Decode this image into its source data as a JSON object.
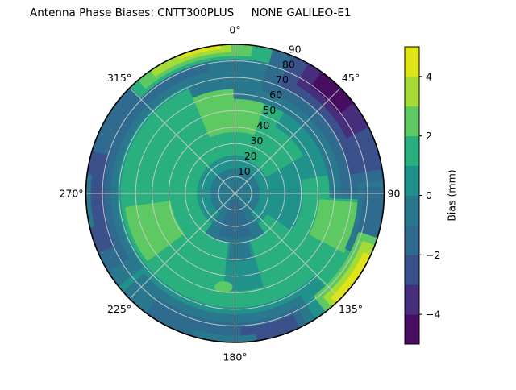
{
  "chart_data": {
    "type": "polar_contour",
    "title": "Antenna Phase Biases: CNTT300PLUS     NONE GALILEO-E1",
    "projection": "polar",
    "angular_tick_labels": [
      "0°",
      "45°",
      "90",
      "135°",
      "180°",
      "225°",
      "270°",
      "315°"
    ],
    "angular_tick_degrees": [
      0,
      45,
      90,
      135,
      180,
      225,
      270,
      315
    ],
    "radial_tick_labels": [
      "10",
      "20",
      "30",
      "40",
      "50",
      "60",
      "70",
      "80",
      "90"
    ],
    "radial_range": [
      0,
      90
    ],
    "grid": {
      "ring_step": 10,
      "spoke_step_deg": 45,
      "color": "#cdcdcd",
      "outline_color": "#000000"
    },
    "colorbar": {
      "label": "Bias (mm)",
      "min": -5,
      "max": 5,
      "n_segments": 10,
      "tick_values": [
        4,
        2,
        0,
        -2,
        -4
      ],
      "tick_labels": [
        "4",
        "2",
        "0",
        "−2",
        "−4"
      ],
      "colors_bottom_to_top": [
        "#470d60",
        "#472e7c",
        "#3b518b",
        "#2f6b8e",
        "#2a788e",
        "#21918c",
        "#2ab07f",
        "#5ec962",
        "#a5db36",
        "#dfe318"
      ]
    },
    "estimated_bias_grid": {
      "units": "mm",
      "azimuth_deg": [
        0,
        45,
        90,
        135,
        180,
        225,
        270,
        315
      ],
      "zenith_deg": [
        0,
        15,
        30,
        45,
        60,
        75,
        90
      ],
      "values_mm": [
        [
          -0.5,
          0.5,
          1.5,
          2.5,
          1.5,
          0.5,
          3.5
        ],
        [
          -0.5,
          0.5,
          1.0,
          0.5,
          -0.5,
          -2.5,
          -4.5
        ],
        [
          -0.5,
          0.5,
          1.0,
          1.5,
          1.5,
          0.5,
          -1.5
        ],
        [
          -0.5,
          0.0,
          1.0,
          1.5,
          1.5,
          2.5,
          4.5
        ],
        [
          -1.5,
          -1.0,
          0.5,
          1.5,
          1.0,
          -0.5,
          -1.5
        ],
        [
          -0.5,
          0.5,
          1.5,
          2.0,
          1.5,
          0.5,
          -1.0
        ],
        [
          -0.5,
          1.0,
          1.5,
          2.0,
          1.5,
          -0.5,
          -2.5
        ],
        [
          -0.5,
          1.0,
          1.5,
          2.0,
          2.5,
          2.5,
          1.5
        ]
      ]
    },
    "base_value": 0.5,
    "contour_regions": [
      {
        "type": "band",
        "az": [
          125,
          390
        ],
        "zen": [
          24,
          68
        ],
        "value": 1.5
      },
      {
        "type": "band",
        "az": [
          25,
          60
        ],
        "zen": [
          22,
          46
        ],
        "value": 1.5
      },
      {
        "type": "band",
        "az": [
          80,
          135
        ],
        "zen": [
          42,
          80
        ],
        "value": 1.5
      },
      {
        "type": "band",
        "az": [
          337,
          377
        ],
        "zen": [
          38,
          62
        ],
        "value": 2.5
      },
      {
        "type": "band",
        "az": [
          233,
          262
        ],
        "zen": [
          40,
          66
        ],
        "value": 2.5
      },
      {
        "type": "band",
        "az": [
          95,
          118
        ],
        "zen": [
          52,
          74
        ],
        "value": 2.5
      },
      {
        "type": "band",
        "az": [
          164,
          186
        ],
        "zen": [
          24,
          58
        ],
        "value": 0.5
      },
      {
        "type": "band",
        "az": [
          167,
          184
        ],
        "zen": [
          26,
          40
        ],
        "value": -0.5
      },
      {
        "type": "ellipse",
        "az": 187,
        "zen": 57,
        "rx": 5.5,
        "ry": 3.5,
        "rot": 0,
        "value": 2.5
      },
      {
        "type": "disk",
        "zen": 15,
        "value": -0.5
      },
      {
        "type": "band",
        "az": [
          145,
          215
        ],
        "zen": [
          0,
          29
        ],
        "value": -0.5
      },
      {
        "type": "band",
        "az": [
          160,
          200
        ],
        "zen": [
          5,
          26
        ],
        "value": -1.5
      },
      {
        "type": "band",
        "az": [
          337,
          360
        ],
        "zen": [
          64,
          80
        ],
        "value": -0.5
      },
      {
        "type": "band",
        "az": [
          0,
          92
        ],
        "zen": [
          58,
          90
        ],
        "value": -0.5
      },
      {
        "type": "band",
        "az": [
          15,
          90
        ],
        "zen": [
          65,
          90
        ],
        "value": -1.5
      },
      {
        "type": "band",
        "az": [
          23,
          80
        ],
        "zen": [
          71,
          90
        ],
        "value": -2.5
      },
      {
        "type": "band",
        "az": [
          30,
          63
        ],
        "zen": [
          76,
          90
        ],
        "value": -3.5
      },
      {
        "type": "band",
        "az": [
          36,
          52
        ],
        "zen": [
          80,
          90
        ],
        "value": -4.5
      },
      {
        "type": "band",
        "az": [
          86,
          116
        ],
        "zen": [
          75,
          90
        ],
        "value": -0.5
      },
      {
        "type": "band",
        "az": [
          88,
          112
        ],
        "zen": [
          78,
          90
        ],
        "value": -1.5
      },
      {
        "type": "band",
        "az": [
          148,
          228
        ],
        "zen": [
          74,
          90
        ],
        "value": -0.5
      },
      {
        "type": "band",
        "az": [
          152,
          216
        ],
        "zen": [
          79,
          90
        ],
        "value": -1.5
      },
      {
        "type": "band",
        "az": [
          155,
          177
        ],
        "zen": [
          82,
          90
        ],
        "value": -2.5
      },
      {
        "type": "band",
        "az": [
          172,
          196
        ],
        "zen": [
          86.5,
          90
        ],
        "value": -0.5
      },
      {
        "type": "band",
        "az": [
          232,
          352
        ],
        "zen": [
          72,
          90
        ],
        "value": -0.5
      },
      {
        "type": "band",
        "az": [
          239,
          348
        ],
        "zen": [
          76,
          90
        ],
        "value": -1.5
      },
      {
        "type": "band",
        "az": [
          247,
          286
        ],
        "zen": [
          80,
          90
        ],
        "value": -2.5
      },
      {
        "type": "band",
        "az": [
          257,
          277
        ],
        "zen": [
          87.5,
          90
        ],
        "value": -0.5
      },
      {
        "type": "band",
        "az": [
          316,
          374
        ],
        "zen": [
          82,
          90
        ],
        "value": 1.5
      },
      {
        "type": "band",
        "az": [
          320,
          366
        ],
        "zen": [
          84,
          90
        ],
        "value": 2.5
      },
      {
        "type": "band",
        "az": [
          326,
          358
        ],
        "zen": [
          86,
          90
        ],
        "value": 3.5
      },
      {
        "type": "band",
        "az": [
          338,
          354
        ],
        "zen": [
          88,
          90
        ],
        "value": 4.5
      },
      {
        "type": "band",
        "az": [
          108,
          142
        ],
        "zen": [
          79,
          90
        ],
        "value": 2.5
      },
      {
        "type": "band",
        "az": [
          111,
          139
        ],
        "zen": [
          83,
          90
        ],
        "value": 3.5
      },
      {
        "type": "band",
        "az": [
          115,
          137
        ],
        "zen": [
          86,
          90
        ],
        "value": 4.5
      }
    ]
  }
}
